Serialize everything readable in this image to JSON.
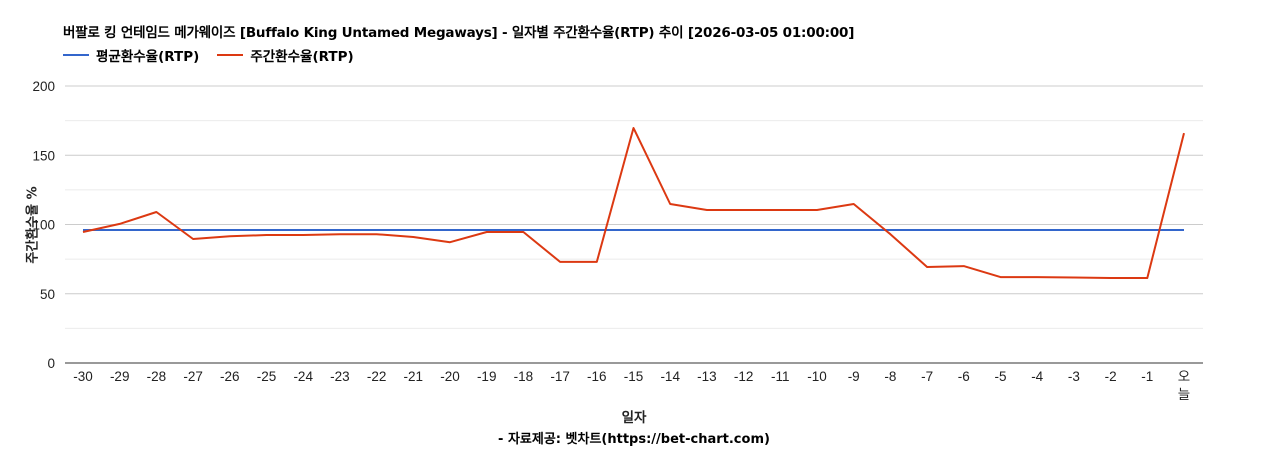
{
  "header": {
    "title": "버팔로 킹 언테임드 메가웨이즈 [Buffalo King Untamed Megaways] - 일자별 주간환수율(RTP) 추이 [2026-03-05 01:00:00]"
  },
  "legend": {
    "items": [
      {
        "label": "평균환수율(RTP)",
        "color": "#3366cc"
      },
      {
        "label": "주간환수율(RTP)",
        "color": "#dc3912"
      }
    ]
  },
  "axes": {
    "ylabel": "주간환수율 %",
    "xlabel": "일자",
    "yticks": [
      "0",
      "50",
      "100",
      "150",
      "200"
    ]
  },
  "footer": {
    "credit": "- 자료제공: 벳차트(https://bet-chart.com)"
  },
  "chart_data": {
    "type": "line",
    "title": "버팔로 킹 언테임드 메가웨이즈 [Buffalo King Untamed Megaways] - 일자별 주간환수율(RTP) 추이 [2026-03-05 01:00:00]",
    "xlabel": "일자",
    "ylabel": "주간환수율 %",
    "ylim": [
      0,
      200
    ],
    "yticks": [
      0,
      50,
      100,
      150,
      200
    ],
    "grid": true,
    "legend_position": "top-left",
    "categories": [
      "-30",
      "-29",
      "-28",
      "-27",
      "-26",
      "-25",
      "-24",
      "-23",
      "-22",
      "-21",
      "-20",
      "-19",
      "-18",
      "-17",
      "-16",
      "-15",
      "-14",
      "-13",
      "-12",
      "-11",
      "-10",
      "-9",
      "-8",
      "-7",
      "-6",
      "-5",
      "-4",
      "-3",
      "-2",
      "-1",
      "오늘"
    ],
    "series": [
      {
        "name": "평균환수율(RTP)",
        "color": "#3366cc",
        "values": [
          96,
          96,
          96,
          96,
          96,
          96,
          96,
          96,
          96,
          96,
          96,
          96,
          96,
          96,
          96,
          96,
          96,
          96,
          96,
          96,
          96,
          96,
          96,
          96,
          96,
          96,
          96,
          96,
          96,
          96,
          96
        ]
      },
      {
        "name": "주간환수율(RTP)",
        "color": "#dc3912",
        "values": [
          94.6,
          100.4,
          109,
          89.5,
          91.5,
          92.4,
          92.4,
          93,
          93,
          91,
          87.2,
          94.6,
          94.6,
          73,
          73,
          169.7,
          114.8,
          110.5,
          110.5,
          110.5,
          110.5,
          114.8,
          93,
          69.3,
          70,
          62,
          62,
          61.7,
          61.4,
          61.4,
          166
        ]
      }
    ]
  }
}
